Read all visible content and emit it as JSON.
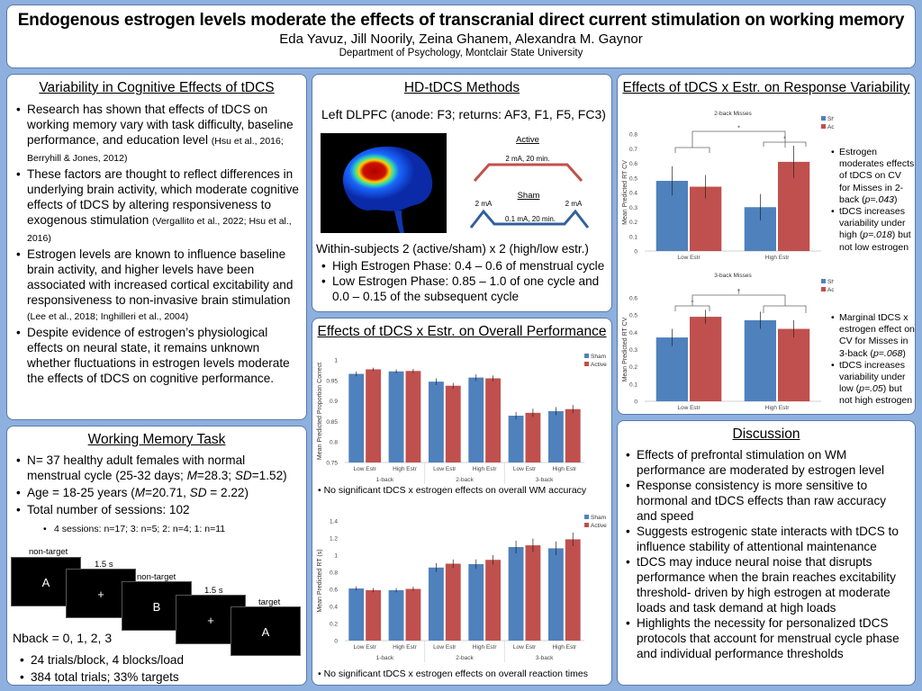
{
  "header": {
    "title": "Endogenous estrogen levels moderate the effects of transcranial direct current stimulation on working memory",
    "authors": "Eda Yavuz, Jill Noorily, Zeina Ghanem, Alexandra M. Gaynor",
    "affiliation": "Department of Psychology, Montclair State University"
  },
  "colors": {
    "background": "#8eb0df",
    "sham": "#4f81bd",
    "active": "#c0504d",
    "panel_border": "#5a7aa8"
  },
  "variability": {
    "title": "Variability in Cognitive Effects of tDCS",
    "bullets": [
      {
        "text": "Research has shown that effects of tDCS on working memory vary with task difficulty, baseline performance, and education level ",
        "cite": "(Hsu et al., 2016; Berryhill & Jones, 2012)"
      },
      {
        "text": "These factors are thought to reflect differences in underlying brain activity, which moderate cognitive effects of tDCS by altering responsiveness to exogenous stimulation ",
        "cite": "(Vergallito et al., 2022; Hsu et al., 2016)"
      },
      {
        "text": "Estrogen levels are known to influence baseline brain activity, and higher levels have been associated with increased cortical excitability and responsiveness to non-invasive brain stimulation ",
        "cite": "(Lee et al., 2018; Inghilleri et al., 2004)"
      },
      {
        "text": "Despite evidence of estrogen’s physiological effects on neural state, it remains unknown whether fluctuations in estrogen levels moderate the effects of tDCS on cognitive performance.",
        "cite": ""
      }
    ]
  },
  "wm_task": {
    "title": "Working Memory Task",
    "b1_pre": "N= 37 healthy adult females with normal menstrual cycle (25-32 days; ",
    "b1_m": "M",
    "b1_mid": "=28.3; ",
    "b1_sd": "SD",
    "b1_post": "=1.52)",
    "b2_pre": "Age = 18-25 years (",
    "b2_m": "M",
    "b2_mid": "=20.71, ",
    "b2_sd": "SD",
    "b2_post": " = 2.22)",
    "b3": "Total number of sessions: 102",
    "b3_sub": "4 sessions: n=17; 3: n=5; 2: n=4; 1: n=11",
    "screens": [
      {
        "label": "non-target",
        "content": "A"
      },
      {
        "label": "1.5 s",
        "content": "+"
      },
      {
        "label": "non-target",
        "content": "B"
      },
      {
        "label": "1.5 s",
        "content": "+"
      },
      {
        "label": "target",
        "content": "A"
      }
    ],
    "nback": "Nback = 0, 1, 2, 3",
    "b4": "24 trials/block, 4 blocks/load",
    "b5": "384 total trials; 33% targets"
  },
  "methods": {
    "title": "HD-tDCS Methods",
    "montage": "Left DLPFC (anode: F3; returns: AF3, F1, F5, FC3)",
    "active_label": "Active",
    "active_param": "2 mA, 20 min.",
    "sham_label": "Sham",
    "sham_peak_left": "2 mA",
    "sham_peak_right": "2 mA",
    "sham_param": "0.1 mA, 20 min.",
    "design": "Within-subjects 2 (active/sham) x 2 (high/low estr.)",
    "phases": [
      "High Estrogen Phase: 0.4 – 0.6 of menstrual cycle",
      "Low Estrogen Phase: 0.85 – 1.0 of one cycle and 0.0 – 0.15 of the subsequent cycle"
    ]
  },
  "performance": {
    "title": "Effects of tDCS x Estr. on Overall Performance",
    "note_accuracy": "• No significant tDCS x estrogen effects on overall WM accuracy",
    "note_rt": "• No significant tDCS x estrogen effects on overall reaction times"
  },
  "response": {
    "title": "Effects of tDCS x Estr. on Response Variability",
    "side1": [
      {
        "pre": "Estrogen moderates effects of tDCS on CV for Misses in 2-back (",
        "it": "p=.043",
        "post": ")"
      },
      {
        "pre": "tDCS increases variability under high (",
        "it": "p=.018",
        "post": ") but not low estrogen"
      }
    ],
    "side2": [
      {
        "pre": "Marginal tDCS x estrogen effect on CV for Misses in 3-back (",
        "it": "p=.068",
        "post": ")"
      },
      {
        "pre": "tDCS increases variability under low (",
        "it": "p=.05",
        "post": ") but not high estrogen"
      }
    ]
  },
  "discussion": {
    "title": "Discussion",
    "bullets": [
      "Effects of prefrontal stimulation on WM performance are moderated by estrogen level",
      "Response consistency is more sensitive to hormonal and tDCS effects than raw accuracy and speed",
      "Suggests estrogenic state interacts with tDCS to influence stability of attentional maintenance",
      "tDCS may induce neural noise that disrupts performance when the brain reaches excitability threshold- driven by high estrogen at moderate loads and task demand at high loads",
      "Highlights the necessity for personalized tDCS protocols that account for menstrual cycle phase and individual performance thresholds"
    ]
  },
  "chart_data": [
    {
      "id": "accuracy",
      "type": "bar",
      "title": "",
      "xlabel": "",
      "ylabel": "Mean Predicted Proportion Correct",
      "ylim": [
        0.75,
        1
      ],
      "yticks": [
        0.75,
        0.8,
        0.85,
        0.9,
        0.95,
        1
      ],
      "ytick_labels": [
        "0.75",
        "0.8",
        "0.85",
        "0.9",
        "0.95",
        "1"
      ],
      "groups": [
        "1-back",
        "2-back",
        "3-back"
      ],
      "categories": [
        "Low Estr",
        "High Estr",
        "Low Estr",
        "High Estr",
        "Low Estr",
        "High Estr"
      ],
      "legend": "top-right",
      "series": [
        {
          "name": "Sham",
          "values": [
            0.966,
            0.972,
            0.947,
            0.957,
            0.864,
            0.875
          ],
          "err": [
            0.006,
            0.005,
            0.008,
            0.008,
            0.009,
            0.01
          ]
        },
        {
          "name": "Active",
          "values": [
            0.977,
            0.973,
            0.937,
            0.955,
            0.871,
            0.88
          ],
          "err": [
            0.004,
            0.005,
            0.007,
            0.007,
            0.01,
            0.01
          ]
        }
      ]
    },
    {
      "id": "rt",
      "type": "bar",
      "title": "",
      "xlabel": "",
      "ylabel": "Mean Predicted RT (s)",
      "ylim": [
        0,
        1.4
      ],
      "yticks": [
        0,
        0.2,
        0.4,
        0.6,
        0.8,
        1,
        1.2,
        1.4
      ],
      "ytick_labels": [
        "0",
        "0.2",
        "0.4",
        "0.6",
        "0.8",
        "1",
        "1.2",
        "1.4"
      ],
      "groups": [
        "1-back",
        "2-back",
        "3-back"
      ],
      "categories": [
        "Low Estr",
        "High Estr",
        "Low Estr",
        "High Estr",
        "Low Estr",
        "High Estr"
      ],
      "legend": "top-right",
      "series": [
        {
          "name": "Sham",
          "values": [
            0.61,
            0.59,
            0.855,
            0.895,
            1.095,
            1.08
          ],
          "err": [
            0.025,
            0.025,
            0.05,
            0.055,
            0.075,
            0.08
          ]
        },
        {
          "name": "Active",
          "values": [
            0.59,
            0.605,
            0.9,
            0.945,
            1.115,
            1.185
          ],
          "err": [
            0.025,
            0.025,
            0.05,
            0.055,
            0.08,
            0.08
          ]
        }
      ]
    },
    {
      "id": "cv2",
      "type": "bar",
      "title": "2-back Misses",
      "xlabel": "",
      "ylabel": "Mean Predicted RT CV",
      "ylim": [
        0,
        0.8
      ],
      "yticks": [
        0,
        0.1,
        0.2,
        0.3,
        0.4,
        0.5,
        0.6,
        0.7,
        0.8
      ],
      "ytick_labels": [
        "0",
        "0.1",
        "0.2",
        "0.3",
        "0.4",
        "0.5",
        "0.6",
        "0.7",
        "0.8"
      ],
      "groups": [],
      "categories": [
        "Low Estr",
        "High Estr"
      ],
      "legend": "top-right",
      "annotations": [
        "* (interaction)",
        "* (High Estr)"
      ],
      "series": [
        {
          "name": "Sham",
          "values": [
            0.48,
            0.3
          ],
          "err": [
            0.1,
            0.09
          ]
        },
        {
          "name": "Active",
          "values": [
            0.44,
            0.61
          ],
          "err": [
            0.08,
            0.11
          ]
        }
      ]
    },
    {
      "id": "cv3",
      "type": "bar",
      "title": "3-back Misses",
      "xlabel": "",
      "ylabel": "Mean Predicted RT CV",
      "ylim": [
        0,
        0.6
      ],
      "yticks": [
        0,
        0.1,
        0.2,
        0.3,
        0.4,
        0.5,
        0.6
      ],
      "ytick_labels": [
        "0",
        "0.1",
        "0.2",
        "0.3",
        "0.4",
        "0.5",
        "0.6"
      ],
      "groups": [],
      "categories": [
        "Low Estr",
        "High Estr"
      ],
      "legend": "top-right",
      "annotations": [
        "† (interaction)",
        "* (Low Estr)"
      ],
      "series": [
        {
          "name": "Sham",
          "values": [
            0.37,
            0.47
          ],
          "err": [
            0.05,
            0.05
          ]
        },
        {
          "name": "Active",
          "values": [
            0.49,
            0.42
          ],
          "err": [
            0.04,
            0.05
          ]
        }
      ]
    }
  ]
}
